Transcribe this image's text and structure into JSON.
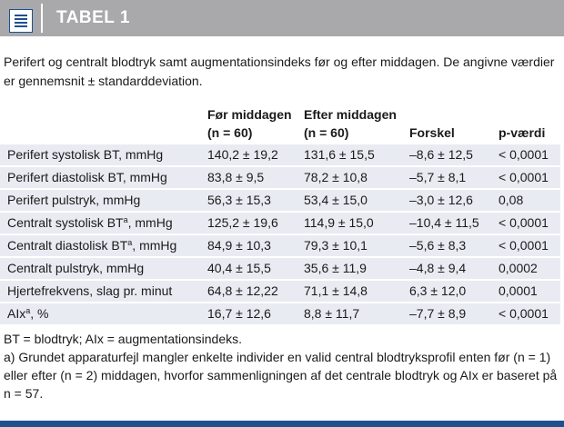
{
  "header": {
    "title": "TABEL 1",
    "icon": "document-lines-icon"
  },
  "caption": "Perifert og centralt blodtryk samt augmentationsindeks før og efter middagen. De angivne værdier er gennemsnit ± standarddeviation.",
  "table": {
    "columns": [
      {
        "line1": "",
        "line2": ""
      },
      {
        "line1": "Før middagen",
        "line2": "(n = 60)"
      },
      {
        "line1": "Efter middagen",
        "line2": "(n = 60)"
      },
      {
        "line1": "",
        "line2": "Forskel"
      },
      {
        "line1": "",
        "line2": "p-værdi"
      }
    ],
    "rows": [
      {
        "label": "Perifert systolisk BT, mmHg",
        "sup": "",
        "suffix": "",
        "before": "140,2 ± 19,2",
        "after": "131,6 ± 15,5",
        "diff": "–8,6 ± 12,5",
        "p": "< 0,0001"
      },
      {
        "label": "Perifert diastolisk BT, mmHg",
        "sup": "",
        "suffix": "",
        "before": "83,8 ± 9,5",
        "after": "78,2 ± 10,8",
        "diff": "–5,7 ± 8,1",
        "p": "< 0,0001"
      },
      {
        "label": "Perifert pulstryk, mmHg",
        "sup": "",
        "suffix": "",
        "before": "56,3 ± 15,3",
        "after": "53,4 ± 15,0",
        "diff": "–3,0 ± 12,6",
        "p": "0,08"
      },
      {
        "label": "Centralt systolisk BT",
        "sup": "a",
        "suffix": ", mmHg",
        "before": "125,2 ± 19,6",
        "after": "114,9 ± 15,0",
        "diff": "–10,4 ± 11,5",
        "p": "< 0,0001"
      },
      {
        "label": "Centralt diastolisk BT",
        "sup": "a",
        "suffix": ", mmHg",
        "before": "84,9 ± 10,3",
        "after": "79,3 ± 10,1",
        "diff": "–5,6 ± 8,3",
        "p": "< 0,0001"
      },
      {
        "label": "Centralt pulstryk, mmHg",
        "sup": "",
        "suffix": "",
        "before": "40,4 ± 15,5",
        "after": "35,6 ± 11,9",
        "diff": "–4,8 ± 9,4",
        "p": "0,0002"
      },
      {
        "label": "Hjertefrekvens, slag pr. minut",
        "sup": "",
        "suffix": "",
        "before": "64,8 ± 12,22",
        "after": "71,1 ± 14,8",
        "diff": "6,3 ± 12,0",
        "p": "0,0001"
      },
      {
        "label": "AIx",
        "sup": "a",
        "suffix": ", %",
        "before": "16,7 ± 12,6",
        "after": "8,8 ± 11,7",
        "diff": "–7,7 ± 8,9",
        "p": "< 0,0001"
      }
    ]
  },
  "footnotes": {
    "abbrev": "BT = blodtryk; AIx = augmentationsindeks.",
    "note_a": "a) Grundet apparaturfejl mangler enkelte individer en valid central blodtryksprofil enten før (n = 1) eller efter (n = 2) middagen, hvorfor sammenligningen af det centrale blodtryk og AIx er baseret på n = 57."
  },
  "colors": {
    "header_bg": "#a9a9ab",
    "row_bg": "#e9ebf2",
    "accent": "#1f4f8f"
  }
}
